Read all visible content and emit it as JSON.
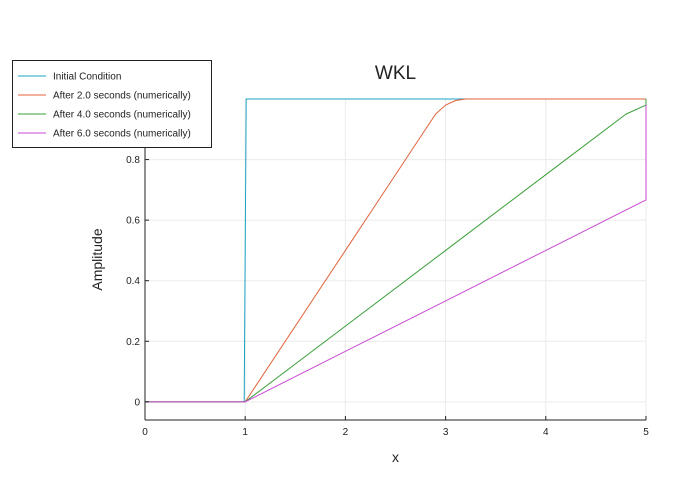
{
  "chart_data": {
    "type": "line",
    "title": "WKL",
    "xlabel": "x",
    "ylabel": "Amplitude",
    "xlim": [
      0,
      5
    ],
    "ylim": [
      -0.06,
      1.0
    ],
    "xticks": [
      0,
      1,
      2,
      3,
      4,
      5
    ],
    "xtick_labels": [
      "0",
      "1",
      "2",
      "3",
      "4",
      "5"
    ],
    "yticks": [
      0,
      0.2,
      0.4,
      0.6,
      0.8
    ],
    "ytick_labels": [
      "0",
      "0.2",
      "0.4",
      "0.6",
      "0.8"
    ],
    "grid": true,
    "legend_position": "top-left",
    "series": [
      {
        "name": "Initial Condition",
        "color": "#1ba2c4",
        "x": [
          0,
          0.99,
          1.0,
          1.01,
          5
        ],
        "y": [
          0,
          0,
          0.5,
          1.0,
          1.0
        ]
      },
      {
        "name": "After 2.0 seconds (numerically)",
        "color": "#e1623a",
        "x": [
          0,
          1.0,
          2.0,
          2.8,
          2.9,
          3.0,
          3.1,
          3.2,
          5
        ],
        "y": [
          0,
          0,
          0.5,
          0.9,
          0.95,
          0.98,
          0.995,
          1.0,
          1.0
        ]
      },
      {
        "name": "After 4.0 seconds (numerically)",
        "color": "#3a9e3a",
        "x": [
          0,
          1.0,
          2.0,
          3.0,
          4.0,
          4.8,
          5.0,
          5.0
        ],
        "y": [
          0,
          0,
          0.25,
          0.5,
          0.75,
          0.95,
          0.98,
          1.0
        ]
      },
      {
        "name": "After 6.0 seconds (numerically)",
        "color": "#c84bd1",
        "x": [
          0,
          1.0,
          2.0,
          3.0,
          4.0,
          5.0,
          5.0
        ],
        "y": [
          0,
          0,
          0.1667,
          0.3333,
          0.5,
          0.6667,
          0.98
        ]
      }
    ]
  }
}
